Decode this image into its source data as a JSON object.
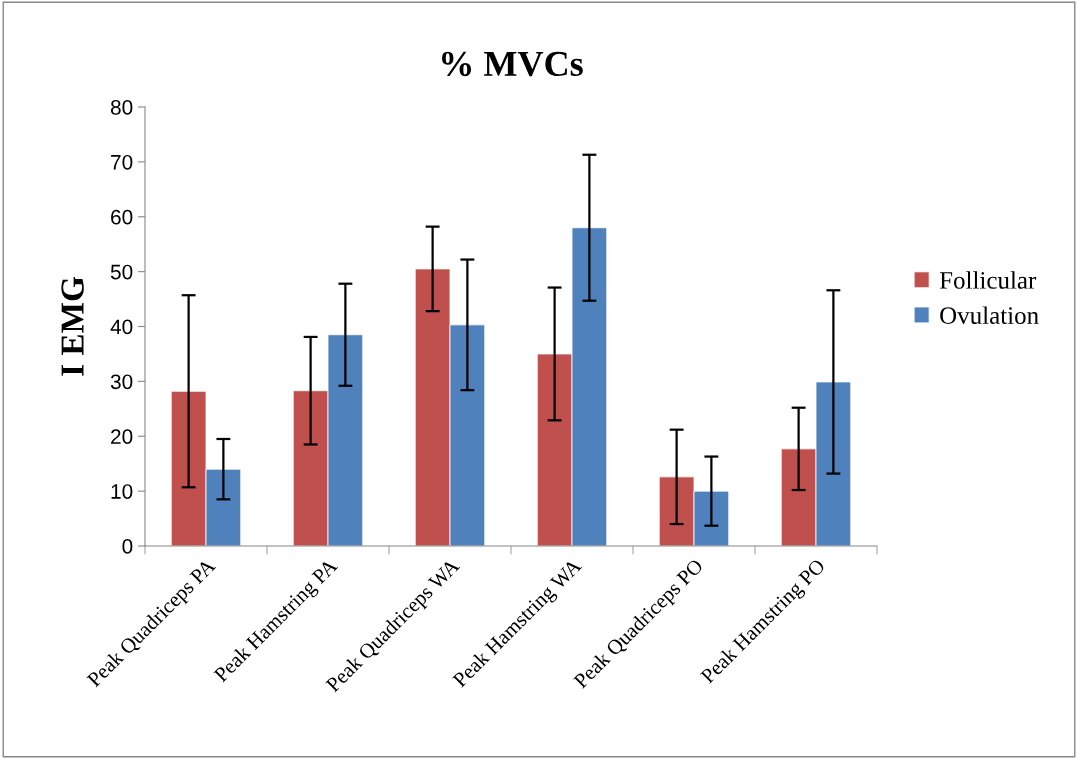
{
  "chart_data": {
    "type": "bar",
    "title": "% MVCs",
    "ylabel": "I EMG",
    "categories": [
      "Peak Quadriceps PA",
      "Peak Hamstring PA",
      "Peak Quadriceps WA",
      "Peak Hamstring WA",
      "Peak Quadriceps PO",
      "Peak Hamstring PO"
    ],
    "series": [
      {
        "name": "Follicular",
        "color": "#c0504d",
        "values": [
          28.2,
          28.3,
          50.5,
          35.0,
          12.6,
          17.7
        ],
        "errors": [
          17.5,
          9.8,
          7.7,
          12.1,
          8.6,
          7.5
        ]
      },
      {
        "name": "Ovulation",
        "color": "#4f81bd",
        "values": [
          14.0,
          38.5,
          40.3,
          58.0,
          10.0,
          29.9
        ],
        "errors": [
          5.5,
          9.3,
          11.9,
          13.3,
          6.3,
          16.7
        ]
      }
    ],
    "ylim": [
      0,
      80
    ],
    "yticks": [
      0,
      10,
      20,
      30,
      40,
      50,
      60,
      70,
      80
    ],
    "grid": false,
    "legend": "right"
  }
}
